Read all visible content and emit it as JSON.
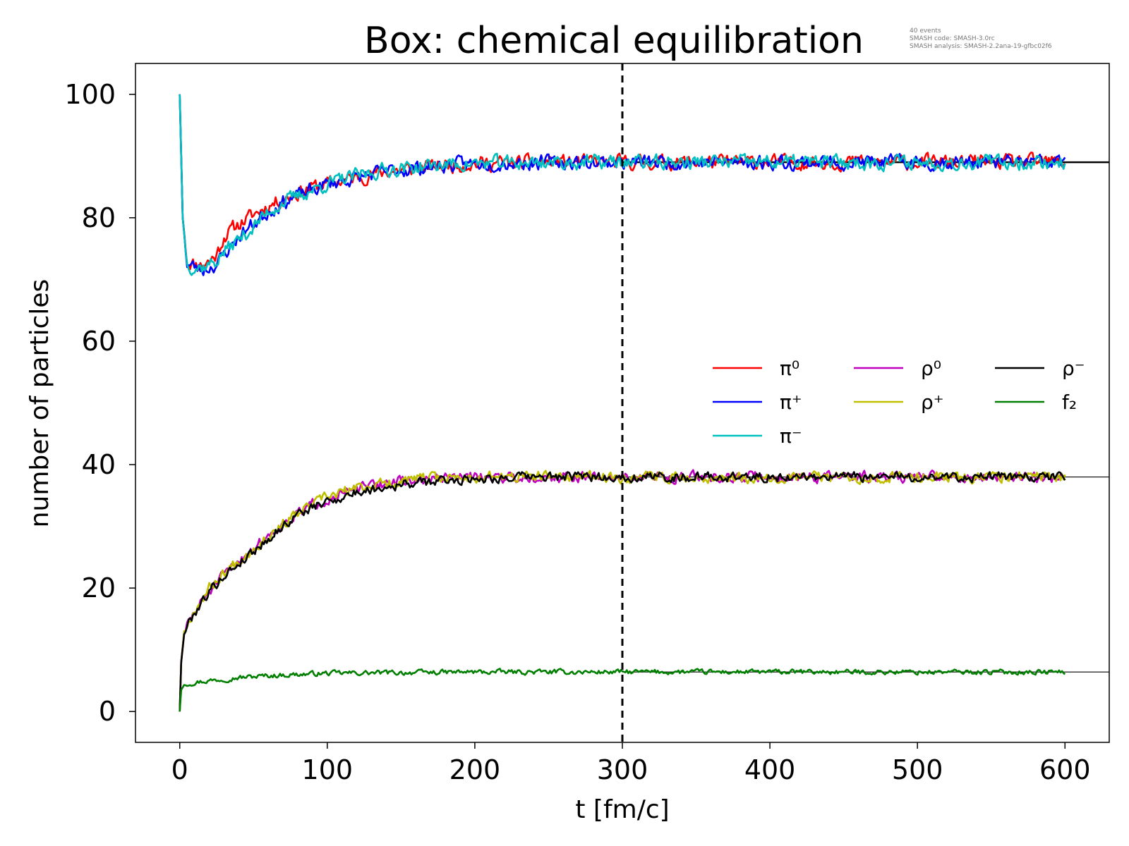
{
  "chart_data": {
    "type": "line",
    "title": "Box: chemical equilibration",
    "info": [
      "40 events",
      "SMASH code:      SMASH-3.0rc",
      "SMASH analysis: SMASH-2.2ana-19-gfbc02f6"
    ],
    "xlabel": "t [fm/c]",
    "ylabel": "number of particles",
    "xlim": [
      -30,
      630
    ],
    "ylim": [
      -5,
      105
    ],
    "xticks": [
      0,
      100,
      200,
      300,
      400,
      500,
      600
    ],
    "yticks": [
      0,
      20,
      40,
      60,
      80,
      100
    ],
    "vline": {
      "x": 300,
      "style": "dashed"
    },
    "equilibrium_lines": [
      {
        "y": 89,
        "x_from": 300,
        "x_to": 630,
        "color": "#000000"
      },
      {
        "y": 38,
        "x_from": 300,
        "x_to": 630,
        "color": "#000000"
      },
      {
        "y": 6.4,
        "x_from": 300,
        "x_to": 630,
        "color": "#000000"
      }
    ],
    "legend_position": "center-right",
    "series": [
      {
        "name": "π⁰",
        "color": "#ff0000",
        "x": [
          0,
          2,
          5,
          10,
          15,
          20,
          25,
          30,
          40,
          50,
          60,
          70,
          80,
          90,
          100,
          120,
          140,
          160,
          180,
          200,
          250,
          300,
          350,
          400,
          450,
          500,
          550,
          600
        ],
        "y": [
          100,
          80,
          73,
          72.5,
          72.5,
          73,
          74,
          77,
          79,
          80.5,
          82,
          83,
          84,
          85,
          85.5,
          86.5,
          87.5,
          88,
          88.5,
          88.8,
          89,
          89,
          89,
          89,
          89,
          89,
          89,
          89
        ],
        "noise": 1.2,
        "seed": 11
      },
      {
        "name": "π⁺",
        "color": "#0000ff",
        "x": [
          0,
          2,
          5,
          10,
          15,
          20,
          25,
          30,
          40,
          50,
          60,
          70,
          80,
          90,
          100,
          120,
          140,
          160,
          180,
          200,
          250,
          300,
          350,
          400,
          450,
          500,
          550,
          600
        ],
        "y": [
          100,
          80,
          72.5,
          72,
          71.5,
          72,
          72.5,
          74,
          77,
          79,
          81,
          82.5,
          83.5,
          84.5,
          85.5,
          86.5,
          87.5,
          88,
          88.5,
          88.8,
          89,
          89,
          89,
          89,
          89,
          89,
          89,
          89
        ],
        "noise": 1.2,
        "seed": 23
      },
      {
        "name": "π⁻",
        "color": "#00bfbf",
        "x": [
          0,
          2,
          5,
          10,
          15,
          20,
          25,
          30,
          40,
          50,
          60,
          70,
          80,
          90,
          100,
          120,
          140,
          160,
          180,
          200,
          250,
          300,
          350,
          400,
          450,
          500,
          550,
          600
        ],
        "y": [
          100,
          80,
          72.5,
          72,
          72,
          72.5,
          73,
          74.5,
          76.5,
          78.5,
          81,
          82.5,
          83.5,
          84.5,
          85.5,
          86.8,
          87.8,
          88.2,
          88.6,
          88.8,
          89,
          89,
          89,
          89,
          89,
          89,
          89,
          89
        ],
        "noise": 1.2,
        "seed": 37
      },
      {
        "name": "ρ⁰",
        "color": "#bf00bf",
        "x": [
          0,
          1,
          3,
          5,
          10,
          20,
          30,
          40,
          50,
          60,
          70,
          80,
          90,
          100,
          120,
          140,
          160,
          180,
          200,
          250,
          300,
          350,
          400,
          450,
          500,
          550,
          600
        ],
        "y": [
          0,
          8,
          13,
          14,
          16,
          19.5,
          22,
          24.5,
          26.5,
          28.5,
          30.5,
          32,
          33.5,
          34.5,
          36,
          37,
          37.5,
          37.8,
          38,
          38,
          38,
          38,
          38,
          38,
          38,
          38,
          38
        ],
        "noise": 0.9,
        "seed": 51
      },
      {
        "name": "ρ⁺",
        "color": "#bfbf00",
        "x": [
          0,
          1,
          3,
          5,
          10,
          20,
          30,
          40,
          50,
          60,
          70,
          80,
          90,
          100,
          120,
          140,
          160,
          180,
          200,
          250,
          300,
          350,
          400,
          450,
          500,
          550,
          600
        ],
        "y": [
          0,
          8,
          13,
          14,
          16.5,
          20,
          22.5,
          24.5,
          26.5,
          28.5,
          30.5,
          32,
          33.5,
          34.8,
          36.2,
          37,
          37.6,
          37.9,
          38,
          38,
          38,
          38,
          38,
          38,
          38,
          38,
          38
        ],
        "noise": 0.9,
        "seed": 67
      },
      {
        "name": "ρ⁻",
        "color": "#000000",
        "x": [
          0,
          1,
          3,
          5,
          10,
          20,
          30,
          40,
          50,
          60,
          70,
          80,
          90,
          100,
          120,
          140,
          160,
          180,
          200,
          250,
          300,
          350,
          400,
          450,
          500,
          550,
          600
        ],
        "y": [
          0,
          8,
          12.5,
          14,
          16,
          19.5,
          22,
          24,
          26,
          28,
          30,
          32,
          33,
          34,
          35.5,
          36.5,
          37,
          37.4,
          37.8,
          38,
          38,
          38,
          38,
          38,
          38,
          38,
          38
        ],
        "noise": 0.8,
        "seed": 79
      },
      {
        "name": "f₂",
        "color": "#007f00",
        "x": [
          0,
          1,
          3,
          5,
          10,
          20,
          40,
          60,
          80,
          100,
          150,
          200,
          250,
          300,
          350,
          400,
          450,
          500,
          550,
          600
        ],
        "y": [
          0,
          3.5,
          4.3,
          4.5,
          4.7,
          5,
          5.5,
          5.8,
          6,
          6.2,
          6.3,
          6.4,
          6.4,
          6.4,
          6.4,
          6.4,
          6.4,
          6.4,
          6.4,
          6.4
        ],
        "noise": 0.4,
        "seed": 97
      }
    ]
  }
}
